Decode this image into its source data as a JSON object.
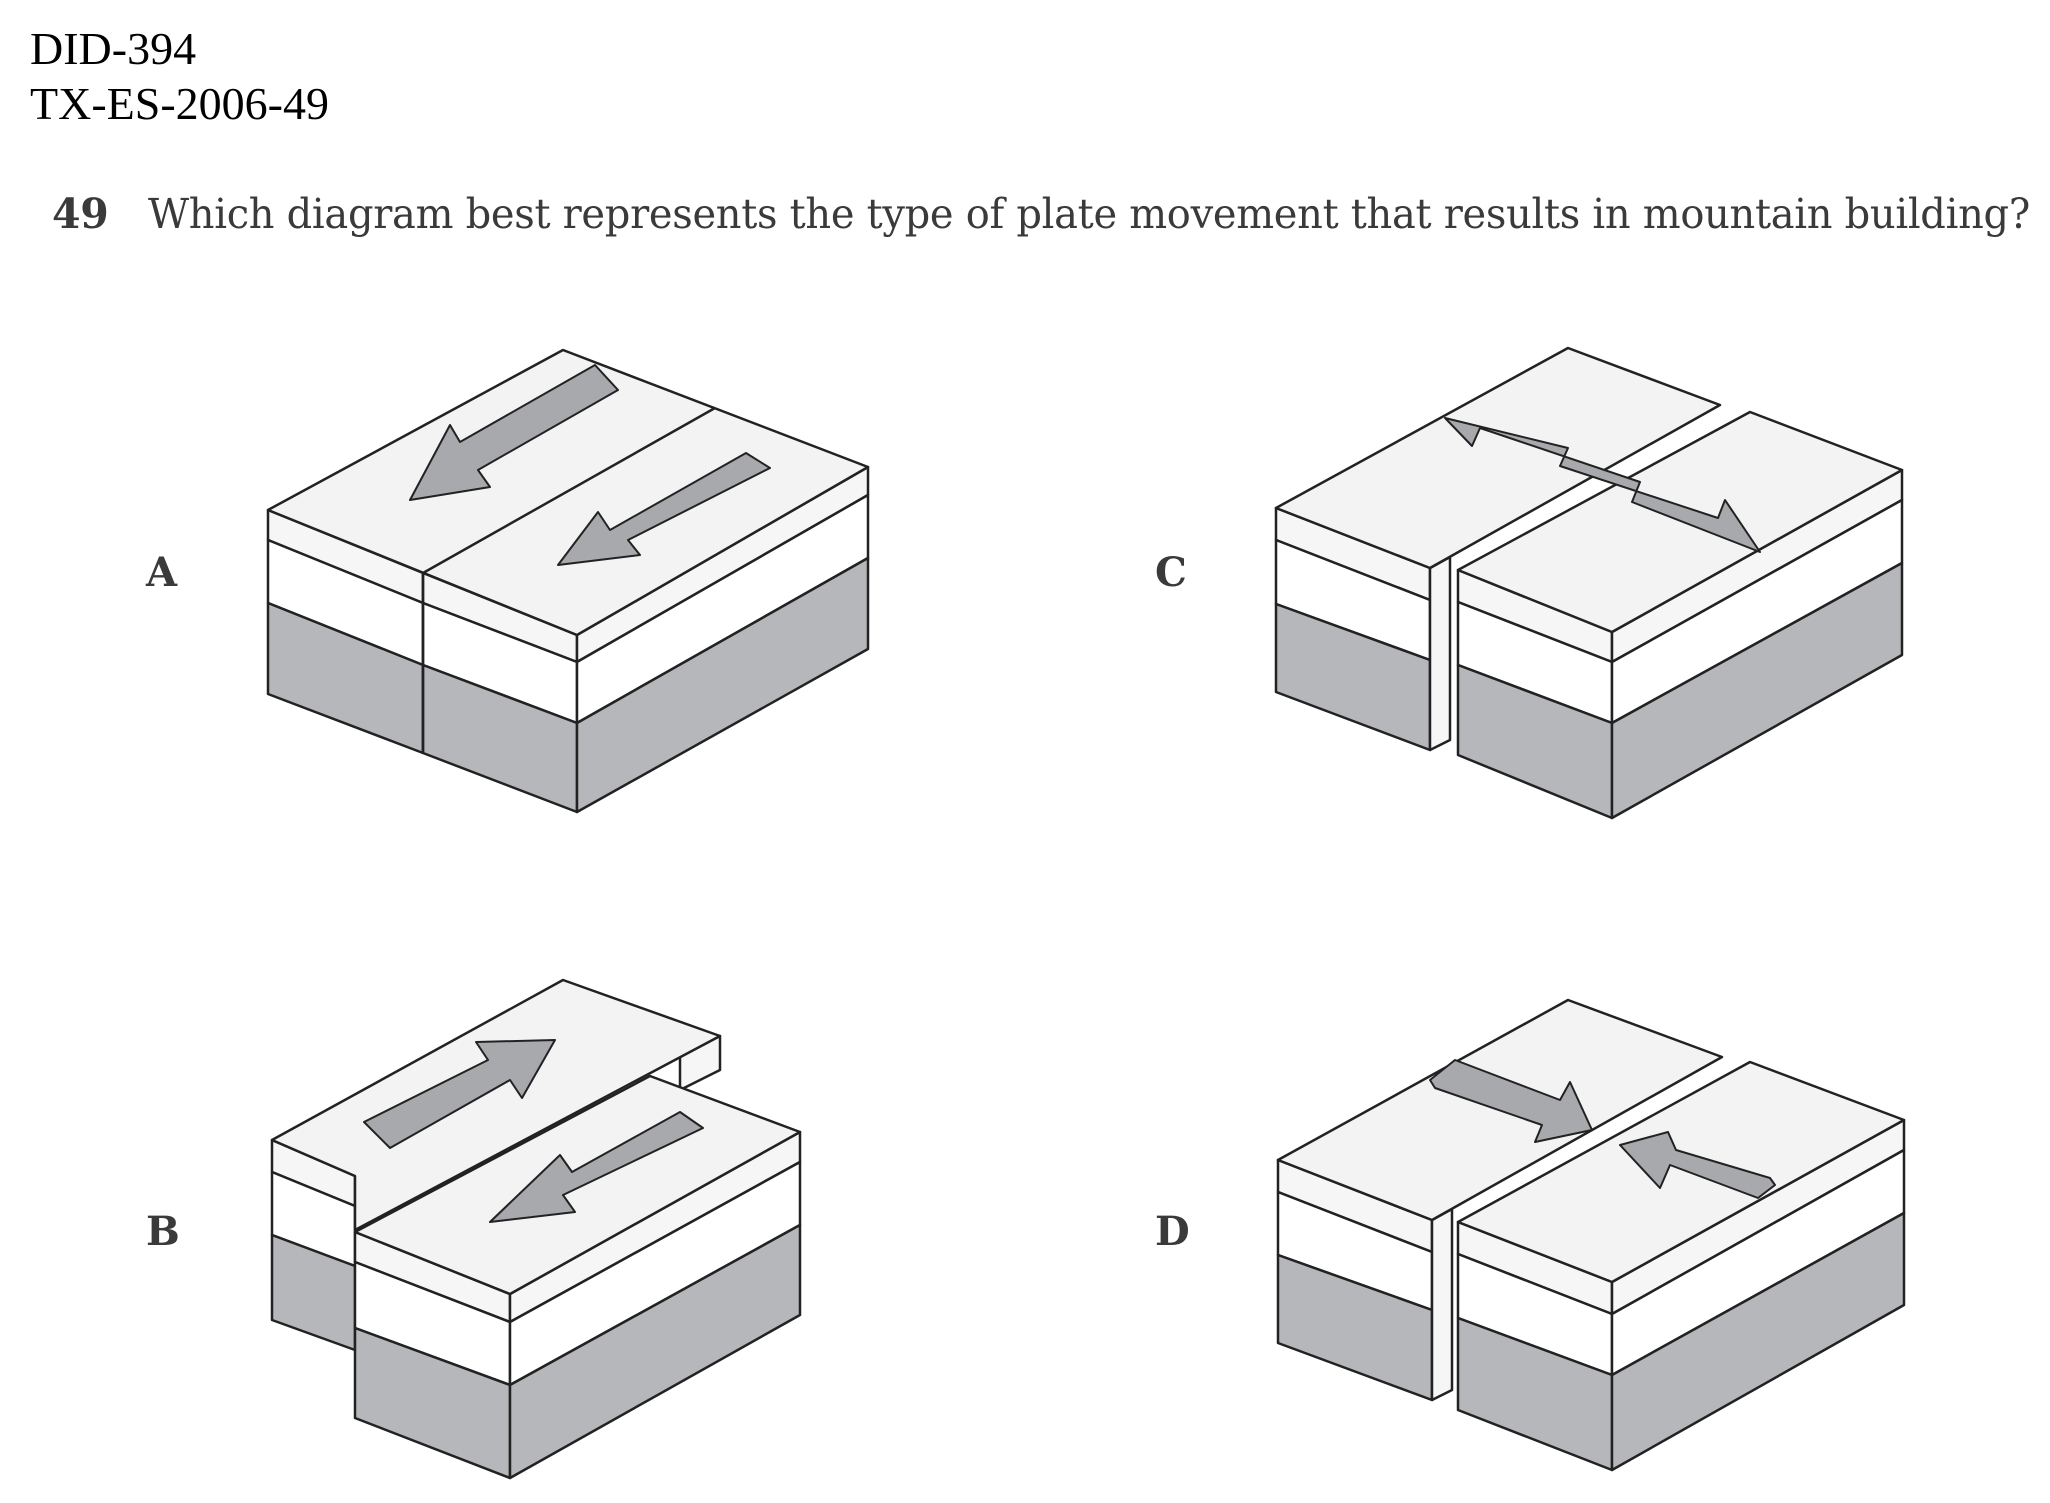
{
  "header": {
    "doc_id": "DID-394",
    "doc_code": "TX-ES-2006-49"
  },
  "question": {
    "number": "49",
    "text": "Which diagram best represents the type of plate movement that results in mountain building?"
  },
  "options": [
    {
      "letter": "A",
      "movement": "transform"
    },
    {
      "letter": "B",
      "movement": "transform-offset"
    },
    {
      "letter": "C",
      "movement": "divergent"
    },
    {
      "letter": "D",
      "movement": "convergent"
    }
  ]
}
